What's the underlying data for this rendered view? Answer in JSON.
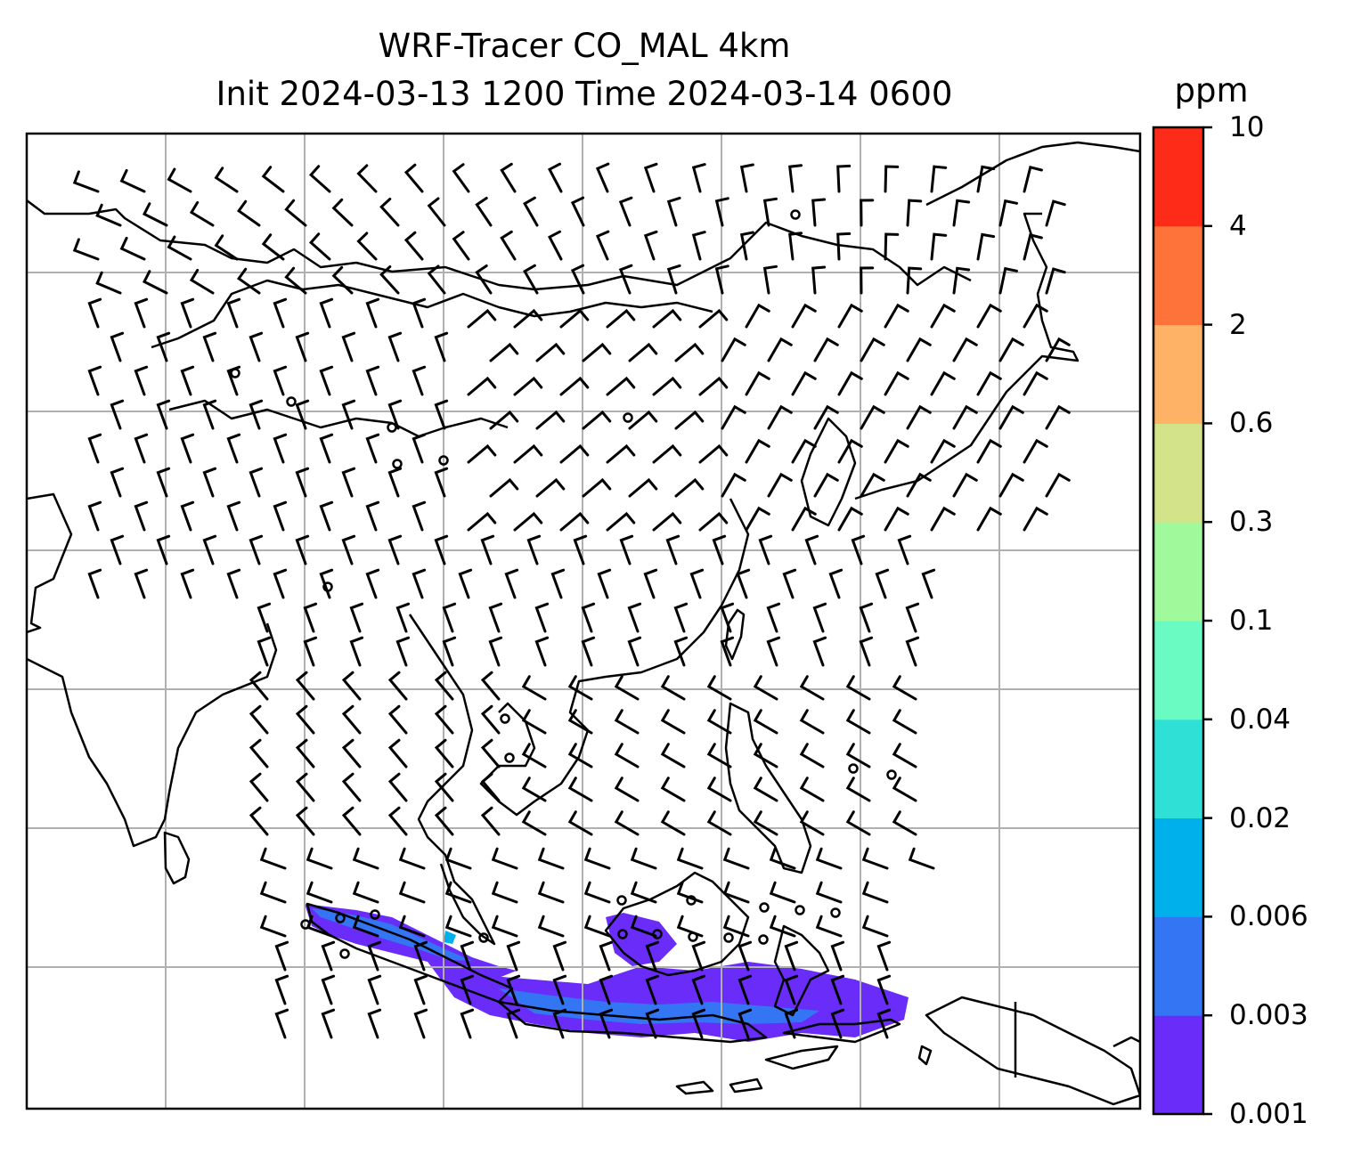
{
  "figure": {
    "title_line1": "WRF-Tracer CO_MAL 4km",
    "title_line2": "Init 2024-03-13 1200 Time 2024-03-14 0600"
  },
  "colorbar": {
    "unit": "ppm",
    "levels": [
      "0.001",
      "0.003",
      "0.006",
      "0.02",
      "0.04",
      "0.1",
      "0.3",
      "0.6",
      "2",
      "4",
      "10"
    ],
    "colors": [
      "#6a2cf9",
      "#3475f4",
      "#00b0ea",
      "#2ee0d6",
      "#69fbc1",
      "#a0f99a",
      "#d2e389",
      "#fdb265",
      "#fe733a",
      "#fe2b18"
    ]
  },
  "map": {
    "gridlines": true,
    "coastline_color": "#000000",
    "grid_color": "#b0b0b0",
    "tracer_region": "southern Sumatra, Java and Lesser Sunda Islands",
    "wind_barbs": true
  }
}
